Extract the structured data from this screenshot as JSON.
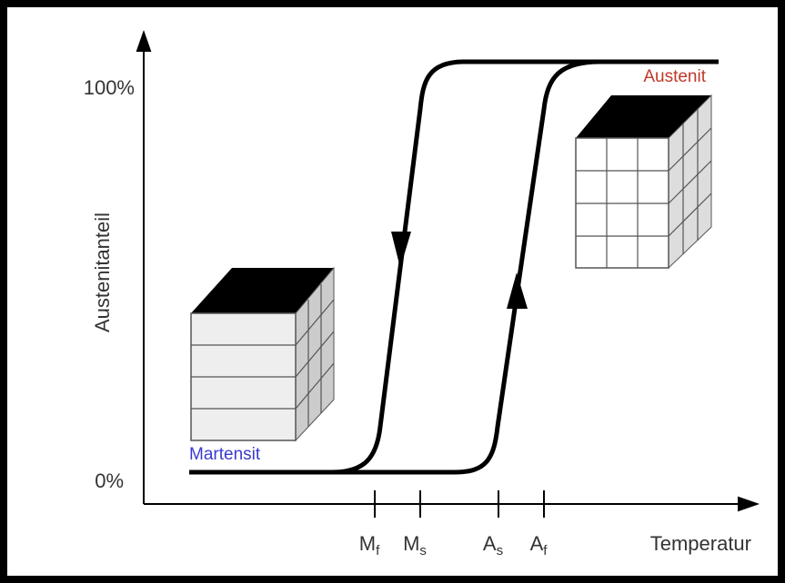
{
  "y_axis": {
    "label": "Austenitanteil",
    "top": "100%",
    "bottom": "0%"
  },
  "x_axis": {
    "label": "Temperatur",
    "ticks": [
      {
        "main": "M",
        "sub": "f"
      },
      {
        "main": "M",
        "sub": "s"
      },
      {
        "main": "A",
        "sub": "s"
      },
      {
        "main": "A",
        "sub": "f"
      }
    ]
  },
  "phases": {
    "martensite": "Martensit",
    "austenite": "Austenit"
  }
}
